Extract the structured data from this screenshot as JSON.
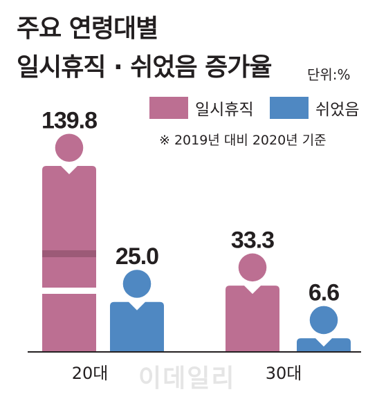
{
  "title_line1": "주요 연령대별",
  "title_line2": "일시휴직 · 쉬었음 증가율",
  "unit": "단위:%",
  "note": "※ 2019년 대비 2020년 기준",
  "watermark": "이데일리",
  "colors": {
    "temporary_leave": "#bc6f92",
    "temporary_leave_dark": "#9c5a77",
    "rest": "#4f88c2",
    "axis": "#231f20"
  },
  "chart_data": {
    "type": "bar",
    "categories": [
      "20대",
      "30대"
    ],
    "series": [
      {
        "name": "일시휴직",
        "values": [
          139.8,
          33.3
        ],
        "labels": [
          "139.8",
          "33.3"
        ]
      },
      {
        "name": "쉬었음",
        "values": [
          25.0,
          6.6
        ],
        "labels": [
          "25.0",
          "6.6"
        ]
      }
    ],
    "broken_axis": true,
    "icon": "person-figure"
  }
}
